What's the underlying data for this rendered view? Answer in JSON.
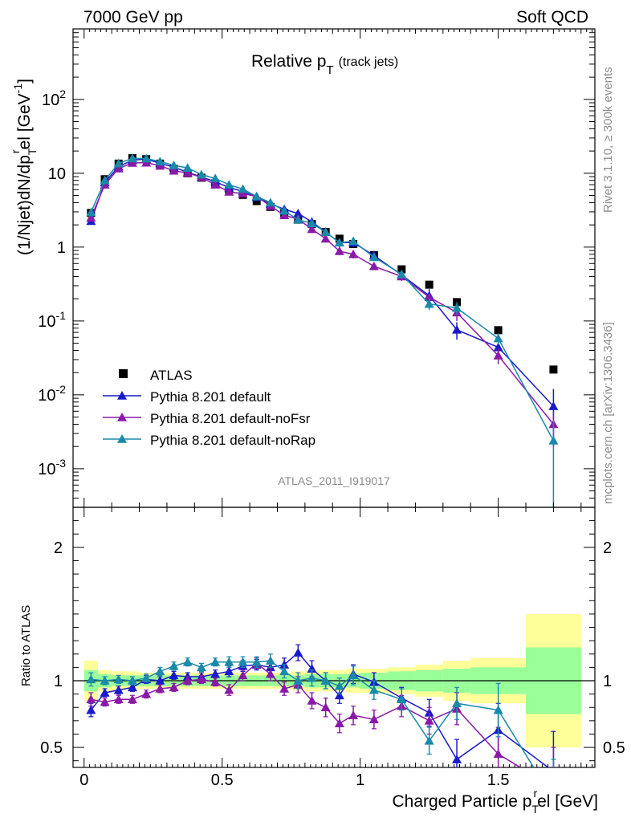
{
  "header": {
    "left": "7000 GeV pp",
    "right": "Soft QCD"
  },
  "side_labels": {
    "rivet": "Rivet 3.1.10, ≥ 300k events",
    "mcplots": "mcplots.cern.ch [arXiv:1306.3436]"
  },
  "chart_data": {
    "type": "scatter",
    "title_main": "Relative p",
    "title_sub": "T",
    "title_note": "(track jets)",
    "analysis_id": "ATLAS_2011_I919017",
    "main_ylabel": "(1/Njet)dN/dp",
    "main_ylabel_sub": "T",
    "main_ylabel_sup": "r",
    "main_ylabel_tail": "el [GeV",
    "main_ylabel_unit_sup": "-1",
    "main_ylabel_close": "]",
    "ratio_ylabel": "Ratio to ATLAS",
    "xlabel_pre": "Charged Particle p",
    "xlabel_sub": "T",
    "xlabel_sup": "r",
    "xlabel_post": "el [GeV]",
    "x_range": [
      -0.04,
      1.85
    ],
    "y_range_log": [
      0.0003,
      900
    ],
    "ratio_range": [
      0.35,
      2.3
    ],
    "x_ticks": [
      "0",
      "0.5",
      "1",
      "1.5"
    ],
    "x_tick_values": [
      0,
      0.5,
      1,
      1.5
    ],
    "y_ticks": [
      {
        "v": 0.001,
        "base": "10",
        "exp": "-3"
      },
      {
        "v": 0.01,
        "base": "10",
        "exp": "-2"
      },
      {
        "v": 0.1,
        "base": "10",
        "exp": "-1"
      },
      {
        "v": 1,
        "base": "1",
        "exp": ""
      },
      {
        "v": 10,
        "base": "10",
        "exp": ""
      },
      {
        "v": 100,
        "base": "10",
        "exp": "2"
      }
    ],
    "ratio_ticks": [
      "0.5",
      "1",
      "2"
    ],
    "ratio_tick_values": [
      0.5,
      1,
      2
    ],
    "legend_position": "bottom-left",
    "x": [
      0.025,
      0.075,
      0.125,
      0.175,
      0.225,
      0.275,
      0.325,
      0.375,
      0.425,
      0.475,
      0.525,
      0.575,
      0.625,
      0.675,
      0.725,
      0.775,
      0.825,
      0.875,
      0.925,
      0.975,
      1.05,
      1.15,
      1.25,
      1.35,
      1.5,
      1.7
    ],
    "x_lo": [
      0,
      0.05,
      0.1,
      0.15,
      0.2,
      0.25,
      0.3,
      0.35,
      0.4,
      0.45,
      0.5,
      0.55,
      0.6,
      0.65,
      0.7,
      0.75,
      0.8,
      0.85,
      0.9,
      0.95,
      1.0,
      1.1,
      1.2,
      1.3,
      1.4,
      1.6
    ],
    "x_hi": [
      0.05,
      0.1,
      0.15,
      0.2,
      0.25,
      0.3,
      0.35,
      0.4,
      0.45,
      0.5,
      0.55,
      0.6,
      0.65,
      0.7,
      0.75,
      0.8,
      0.85,
      0.9,
      0.95,
      1.0,
      1.1,
      1.2,
      1.3,
      1.4,
      1.6,
      1.8
    ],
    "band_yellow": [
      0.15,
      0.08,
      0.07,
      0.07,
      0.06,
      0.06,
      0.06,
      0.06,
      0.06,
      0.06,
      0.06,
      0.06,
      0.06,
      0.06,
      0.06,
      0.07,
      0.08,
      0.08,
      0.08,
      0.09,
      0.09,
      0.1,
      0.12,
      0.15,
      0.17,
      0.5
    ],
    "band_green": [
      0.08,
      0.05,
      0.04,
      0.04,
      0.04,
      0.04,
      0.04,
      0.04,
      0.04,
      0.04,
      0.04,
      0.04,
      0.04,
      0.04,
      0.04,
      0.04,
      0.05,
      0.05,
      0.05,
      0.05,
      0.06,
      0.07,
      0.08,
      0.09,
      0.1,
      0.25
    ],
    "series": [
      {
        "name": "ATLAS",
        "color": "#000000",
        "marker": "square",
        "values": [
          2.9,
          8.3,
          13.5,
          16.0,
          15.5,
          13.5,
          11.5,
          10.0,
          8.7,
          7.3,
          6.0,
          5.1,
          4.2,
          3.5,
          2.9,
          2.35,
          2.05,
          1.6,
          1.3,
          1.1,
          0.78,
          0.5,
          0.31,
          0.18,
          0.075,
          0.022
        ]
      },
      {
        "name": "Pythia 8.201 default",
        "color": "#1a1acc",
        "marker": "triangle",
        "values": [
          2.25,
          7.5,
          12.3,
          15.0,
          15.6,
          13.6,
          12.1,
          10.3,
          8.9,
          7.7,
          6.4,
          5.7,
          4.75,
          3.85,
          3.25,
          2.85,
          2.2,
          1.6,
          1.15,
          1.15,
          0.77,
          0.42,
          0.22,
          0.076,
          0.044,
          0.007
        ],
        "errors": [
          0.05,
          0.2,
          0.3,
          0.3,
          0.3,
          0.3,
          0.3,
          0.3,
          0.3,
          0.3,
          0.3,
          0.3,
          0.3,
          0.3,
          0.3,
          0.3,
          0.2,
          0.15,
          0.15,
          0.15,
          0.1,
          0.05,
          0.05,
          0.02,
          0.01,
          0.005
        ]
      },
      {
        "name": "Pythia 8.201 default-noFsr",
        "color": "#8a1aa6",
        "marker": "triangle",
        "values": [
          2.5,
          7.0,
          11.6,
          13.8,
          13.9,
          12.6,
          10.8,
          10.1,
          8.8,
          7.0,
          5.6,
          5.3,
          4.85,
          3.6,
          2.7,
          2.4,
          1.75,
          1.3,
          0.88,
          0.8,
          0.55,
          0.4,
          0.21,
          0.13,
          0.034,
          0.004
        ],
        "errors": [
          0.05,
          0.2,
          0.3,
          0.3,
          0.3,
          0.3,
          0.3,
          0.3,
          0.3,
          0.3,
          0.3,
          0.3,
          0.3,
          0.3,
          0.3,
          0.2,
          0.2,
          0.15,
          0.1,
          0.1,
          0.05,
          0.05,
          0.03,
          0.03,
          0.008,
          0.002
        ]
      },
      {
        "name": "Pythia 8.201 default-noRap",
        "color": "#1a8aaa",
        "marker": "triangle",
        "values": [
          2.95,
          8.0,
          13.6,
          15.9,
          15.8,
          14.4,
          12.8,
          11.8,
          9.6,
          8.5,
          7.0,
          6.1,
          4.85,
          4.0,
          3.1,
          2.35,
          2.1,
          1.6,
          1.15,
          1.2,
          0.73,
          0.43,
          0.17,
          0.15,
          0.058,
          0.0024
        ],
        "errors": [
          0.05,
          0.2,
          0.3,
          0.3,
          0.3,
          0.3,
          0.3,
          0.3,
          0.3,
          0.3,
          0.3,
          0.3,
          0.3,
          0.3,
          0.3,
          0.2,
          0.2,
          0.15,
          0.1,
          0.1,
          0.05,
          0.05,
          0.03,
          0.03,
          0.01,
          0.0022
        ]
      }
    ],
    "ratio_series": [
      {
        "name": "Pythia 8.201 default",
        "color": "#1a1acc",
        "values": [
          0.78,
          0.91,
          0.93,
          0.95,
          1.01,
          1.0,
          1.04,
          1.03,
          1.03,
          1.05,
          1.07,
          1.11,
          1.12,
          1.1,
          1.12,
          1.21,
          1.09,
          1.0,
          0.89,
          1.05,
          0.99,
          0.87,
          0.76,
          0.41,
          0.63,
          0.32
        ],
        "errors": [
          0.05,
          0.03,
          0.03,
          0.03,
          0.03,
          0.03,
          0.03,
          0.03,
          0.03,
          0.03,
          0.04,
          0.04,
          0.04,
          0.05,
          0.05,
          0.06,
          0.06,
          0.06,
          0.06,
          0.07,
          0.07,
          0.08,
          0.1,
          0.15,
          0.2,
          0.3
        ]
      },
      {
        "name": "Pythia 8.201 default-noFsr",
        "color": "#8a1aa6",
        "values": [
          0.86,
          0.84,
          0.86,
          0.86,
          0.9,
          0.94,
          0.95,
          1.0,
          1.01,
          0.99,
          0.93,
          1.04,
          1.13,
          1.05,
          0.94,
          0.97,
          0.85,
          0.8,
          0.68,
          0.74,
          0.71,
          0.81,
          0.7,
          0.79,
          0.45,
          0.2
        ],
        "errors": [
          0.05,
          0.03,
          0.03,
          0.03,
          0.03,
          0.03,
          0.03,
          0.03,
          0.03,
          0.03,
          0.04,
          0.04,
          0.04,
          0.05,
          0.05,
          0.06,
          0.06,
          0.07,
          0.07,
          0.07,
          0.07,
          0.08,
          0.1,
          0.12,
          0.2,
          0.3
        ]
      },
      {
        "name": "Pythia 8.201 default-noRap",
        "color": "#1a8aaa",
        "values": [
          1.01,
          1.0,
          1.01,
          1.0,
          1.02,
          1.07,
          1.11,
          1.14,
          1.1,
          1.14,
          1.14,
          1.14,
          1.14,
          1.15,
          1.07,
          1.0,
          1.02,
          1.0,
          0.96,
          1.04,
          0.93,
          0.86,
          0.55,
          0.83,
          0.78,
          0.11
        ],
        "errors": [
          0.05,
          0.03,
          0.03,
          0.03,
          0.03,
          0.03,
          0.03,
          0.03,
          0.03,
          0.03,
          0.04,
          0.04,
          0.04,
          0.05,
          0.05,
          0.06,
          0.06,
          0.06,
          0.06,
          0.07,
          0.07,
          0.08,
          0.1,
          0.12,
          0.2,
          0.3
        ]
      }
    ]
  }
}
